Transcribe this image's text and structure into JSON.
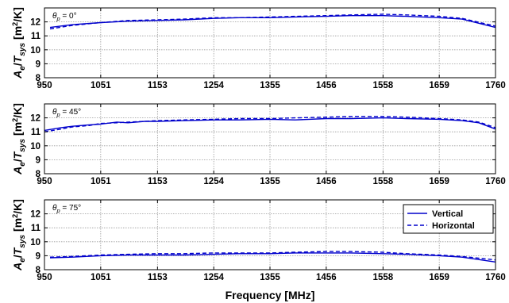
{
  "chart_data": [
    {
      "type": "line",
      "annotation": "θp = 0°",
      "ylabel": "Ae/Tsys [m²/K]",
      "xlim": [
        950,
        1760
      ],
      "ylim": [
        8,
        13
      ],
      "xticks": [
        950,
        1051,
        1153,
        1254,
        1355,
        1456,
        1558,
        1659,
        1760
      ],
      "yticks": [
        8,
        9,
        10,
        11,
        12
      ],
      "grid": true,
      "x": [
        960,
        1000,
        1051,
        1100,
        1153,
        1200,
        1254,
        1300,
        1355,
        1400,
        1456,
        1500,
        1558,
        1600,
        1659,
        1700,
        1760
      ],
      "series": [
        {
          "name": "Vertical",
          "color": "#0000cc",
          "dash": "solid",
          "values": [
            11.6,
            11.8,
            11.95,
            12.05,
            12.1,
            12.15,
            12.25,
            12.3,
            12.3,
            12.35,
            12.4,
            12.45,
            12.45,
            12.4,
            12.3,
            12.2,
            11.6
          ]
        },
        {
          "name": "Horizontal",
          "color": "#0000cc",
          "dash": "dashed",
          "values": [
            11.5,
            11.75,
            11.95,
            12.1,
            12.15,
            12.2,
            12.3,
            12.3,
            12.35,
            12.4,
            12.45,
            12.5,
            12.55,
            12.5,
            12.4,
            12.25,
            11.7
          ]
        }
      ]
    },
    {
      "type": "line",
      "annotation": "θp = 45°",
      "ylabel": "Ae/Tsys [m²/K]",
      "xlim": [
        950,
        1760
      ],
      "ylim": [
        8,
        13
      ],
      "xticks": [
        950,
        1051,
        1153,
        1254,
        1355,
        1456,
        1558,
        1659,
        1760
      ],
      "yticks": [
        8,
        9,
        10,
        11,
        12
      ],
      "grid": true,
      "x": [
        950,
        980,
        1000,
        1030,
        1051,
        1080,
        1100,
        1130,
        1153,
        1200,
        1254,
        1300,
        1355,
        1400,
        1456,
        1500,
        1558,
        1600,
        1659,
        1700,
        1730,
        1760
      ],
      "series": [
        {
          "name": "Vertical",
          "color": "#0000cc",
          "dash": "solid",
          "values": [
            11.1,
            11.3,
            11.4,
            11.5,
            11.55,
            11.7,
            11.65,
            11.75,
            11.75,
            11.8,
            11.85,
            11.85,
            11.9,
            11.85,
            11.95,
            11.95,
            12.0,
            11.95,
            11.9,
            11.8,
            11.65,
            11.2
          ]
        },
        {
          "name": "Horizontal",
          "color": "#0000cc",
          "dash": "dashed",
          "values": [
            11.0,
            11.2,
            11.35,
            11.45,
            11.6,
            11.65,
            11.7,
            11.75,
            11.8,
            11.85,
            11.9,
            11.95,
            11.95,
            12.0,
            12.05,
            12.1,
            12.1,
            12.05,
            11.95,
            11.85,
            11.7,
            11.3
          ]
        }
      ]
    },
    {
      "type": "line",
      "annotation": "θp = 75°",
      "ylabel": "Ae/Tsys [m²/K]",
      "xlabel": "Frequency [MHz]",
      "xlim": [
        950,
        1760
      ],
      "ylim": [
        8,
        13
      ],
      "xticks": [
        950,
        1051,
        1153,
        1254,
        1355,
        1456,
        1558,
        1659,
        1760
      ],
      "yticks": [
        8,
        9,
        10,
        11,
        12
      ],
      "grid": true,
      "legend": "top-right",
      "x": [
        960,
        1000,
        1051,
        1100,
        1153,
        1200,
        1254,
        1300,
        1355,
        1400,
        1456,
        1500,
        1558,
        1600,
        1659,
        1700,
        1760
      ],
      "series": [
        {
          "name": "Vertical",
          "color": "#0000cc",
          "dash": "solid",
          "values": [
            8.85,
            8.9,
            9.0,
            9.05,
            9.05,
            9.05,
            9.1,
            9.15,
            9.15,
            9.2,
            9.2,
            9.2,
            9.15,
            9.1,
            9.0,
            8.9,
            8.55
          ]
        },
        {
          "name": "Horizontal",
          "color": "#0000cc",
          "dash": "dashed",
          "values": [
            8.9,
            8.95,
            9.05,
            9.1,
            9.15,
            9.15,
            9.2,
            9.2,
            9.2,
            9.25,
            9.3,
            9.3,
            9.25,
            9.15,
            9.05,
            8.95,
            8.7
          ]
        }
      ]
    }
  ]
}
